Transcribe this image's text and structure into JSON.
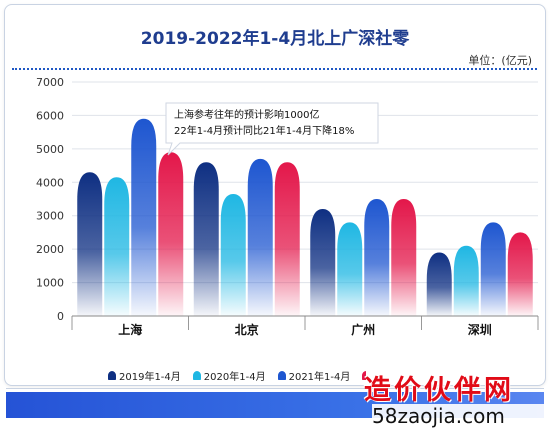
{
  "chart_data": {
    "type": "bar",
    "title": "2019-2022年1-4月北上广深社零",
    "unit_label": "单位：(亿元)",
    "categories": [
      "上海",
      "北京",
      "广州",
      "深圳"
    ],
    "series": [
      {
        "name": "2019年1-4月",
        "values": [
          4300,
          4600,
          3200,
          1900
        ],
        "color": "#0e2f82"
      },
      {
        "name": "2020年1-4月",
        "values": [
          4150,
          3650,
          2800,
          2100
        ],
        "color": "#1fb7e3"
      },
      {
        "name": "2021年1-4月",
        "values": [
          5900,
          4700,
          3500,
          2800
        ],
        "color": "#1e56d0"
      },
      {
        "name": "2022年1-4月",
        "values": [
          4900,
          4600,
          3500,
          2500
        ],
        "color": "#e3174a"
      }
    ],
    "ylim": [
      0,
      7000
    ],
    "yticks": [
      "0",
      "1000",
      "2000",
      "3000",
      "4000",
      "5000",
      "6000",
      "7000"
    ],
    "grid": true,
    "annotation": {
      "line1": "上海参考往年的预计影响1000亿",
      "line2": "22年1-4月预计同比21年1-4月下降18%"
    },
    "legend_position": "bottom"
  },
  "watermark": {
    "text": "造价伙伴网",
    "url": "58zaojia.com"
  }
}
